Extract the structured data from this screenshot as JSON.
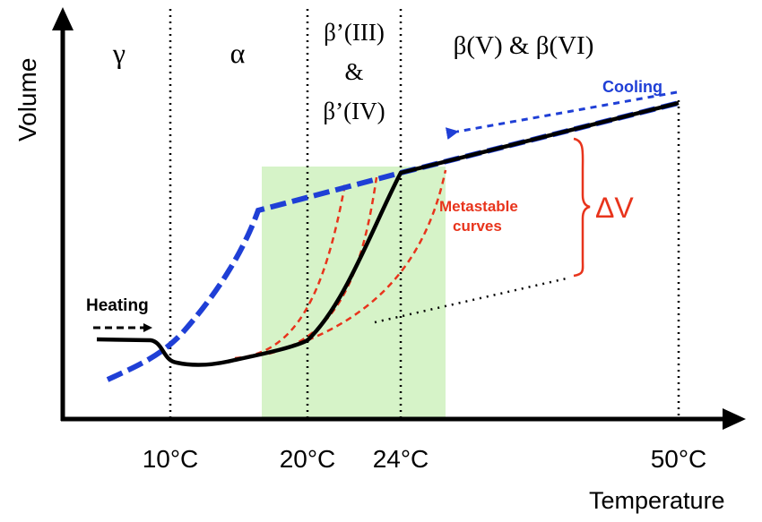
{
  "axes": {
    "ylabel": "Volume",
    "xlabel": "Temperature"
  },
  "temperature_ticks": [
    "10°C",
    "20°C",
    "24°C",
    "50°C"
  ],
  "phases": {
    "gamma": "γ",
    "alpha": "α",
    "beta_prime_iii": "β’(III)",
    "amp": "&",
    "beta_prime_iv": "β’(IV)",
    "beta_v_vi": "β(V) & β(VI)"
  },
  "annotations": {
    "heating": "Heating",
    "cooling": "Cooling",
    "metastable_line1": "Metastable",
    "metastable_line2": "curves",
    "delta_v": "ΔV"
  },
  "colors": {
    "axis": "#000000",
    "heating_curve": "#000000",
    "cooling_curve": "#1f3fd6",
    "metastable": "#e8341c",
    "cooling_label": "#1f3fd6",
    "delta_v": "#e8341c",
    "shaded_region": "#d6f3c8"
  }
}
